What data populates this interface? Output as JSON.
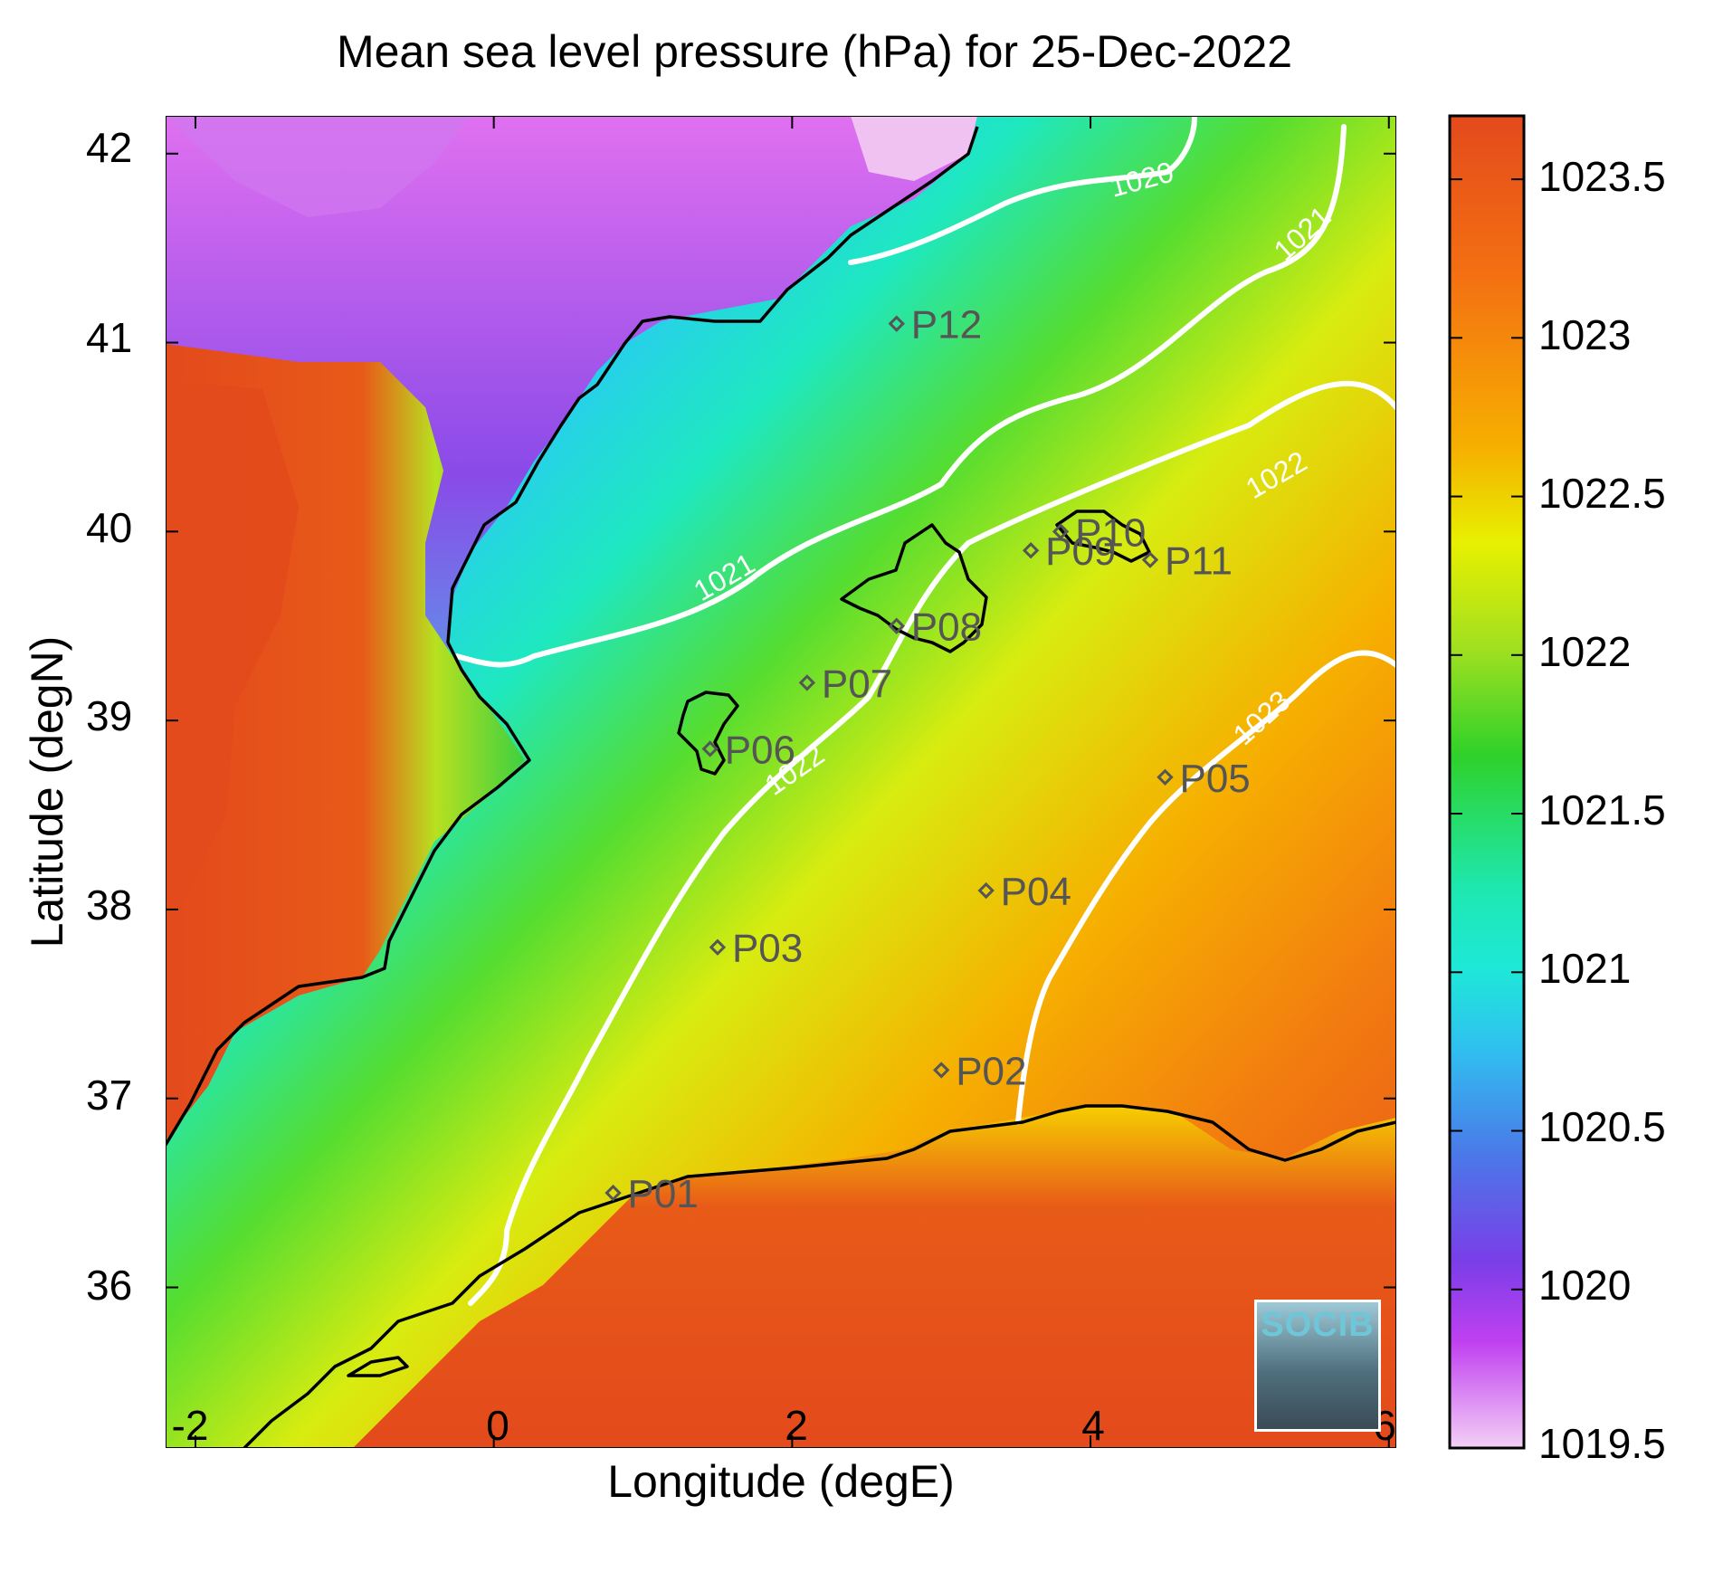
{
  "title": "Mean sea level pressure (hPa) for 25-Dec-2022",
  "xlabel": "Longitude (degE)",
  "ylabel": "Latitude (degN)",
  "x_ticks": [
    "-2",
    "0",
    "2",
    "4",
    "6"
  ],
  "y_ticks": [
    "42",
    "41",
    "40",
    "39",
    "38",
    "37",
    "36"
  ],
  "colorbar_ticks": [
    "1023.5",
    "1023",
    "1022.5",
    "1022",
    "1021.5",
    "1021",
    "1020.5",
    "1020",
    "1019.5"
  ],
  "contour_labels": [
    "1020",
    "1021",
    "1021",
    "1022",
    "1022",
    "1023"
  ],
  "stations": [
    {
      "label": "P01",
      "lon": 0.8,
      "lat": 36.5
    },
    {
      "label": "P02",
      "lon": 3.0,
      "lat": 37.15
    },
    {
      "label": "P03",
      "lon": 1.5,
      "lat": 37.8
    },
    {
      "label": "P04",
      "lon": 3.3,
      "lat": 38.1
    },
    {
      "label": "P05",
      "lon": 4.5,
      "lat": 38.7
    },
    {
      "label": "P06",
      "lon": 1.45,
      "lat": 38.85
    },
    {
      "label": "P07",
      "lon": 2.1,
      "lat": 39.2
    },
    {
      "label": "P08",
      "lon": 2.7,
      "lat": 39.5
    },
    {
      "label": "P09",
      "lon": 3.6,
      "lat": 39.9
    },
    {
      "label": "P10",
      "lon": 3.8,
      "lat": 40.0
    },
    {
      "label": "P11",
      "lon": 4.4,
      "lat": 39.85
    },
    {
      "label": "P12",
      "lon": 2.7,
      "lat": 41.1
    }
  ],
  "logo_text": "SOCIB",
  "colors": {
    "high": "#e34a1c",
    "orange": "#f6a000",
    "yellow": "#e8f000",
    "green": "#2fd12a",
    "cyan": "#1ee8d8",
    "blue": "#3f7de8",
    "purple": "#8a3ee8",
    "low": "#f0c2f2",
    "contour": "#ffffff",
    "coast": "#000000",
    "marker": "#555555"
  },
  "chart_data": {
    "type": "heatmap",
    "variable": "Mean sea level pressure",
    "units": "hPa",
    "date": "25-Dec-2022",
    "xlim": [
      -2.2,
      6.05
    ],
    "ylim": [
      35.15,
      42.2
    ],
    "clim": [
      1019.5,
      1023.7
    ],
    "contour_levels": [
      1020,
      1021,
      1022,
      1023
    ]
  }
}
